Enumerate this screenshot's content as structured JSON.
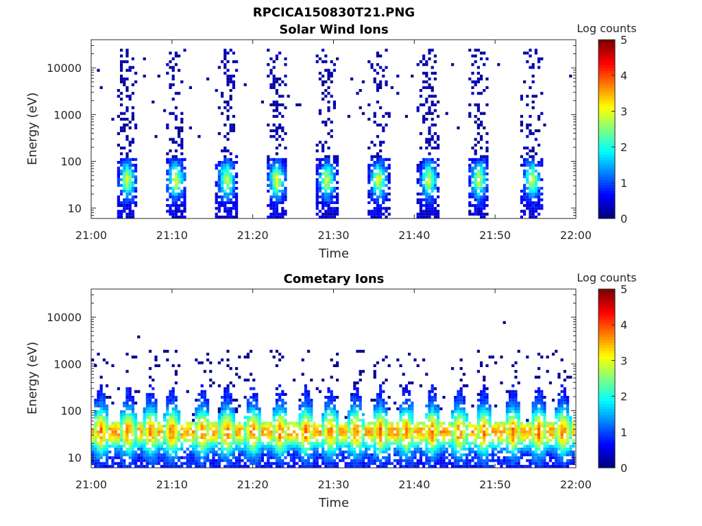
{
  "figure": {
    "title": "RPCICA150830T21.PNG"
  },
  "chart_data": [
    {
      "type": "heatmap",
      "title": "Solar Wind Ions",
      "xlabel": "Time",
      "ylabel": "Energy (eV)",
      "x_ticks": [
        "21:00",
        "21:10",
        "21:20",
        "21:30",
        "21:40",
        "21:50",
        "22:00"
      ],
      "xlim": [
        "21:00",
        "22:00"
      ],
      "y_scale": "log",
      "y_ticks": [
        "10",
        "100",
        "1000",
        "10000"
      ],
      "ylim": [
        6,
        40000
      ],
      "colorbar": {
        "label": "Log counts",
        "ticks": [
          "0",
          "1",
          "2",
          "3",
          "4",
          "5"
        ],
        "range": [
          0,
          5
        ],
        "colormap": "jet"
      },
      "pulses_minutes": [
        4.5,
        10.5,
        16.8,
        23.0,
        29.2,
        35.6,
        41.8,
        48.0,
        54.6
      ],
      "peak_energy_eV": 40,
      "peak_log_counts": 3.0,
      "background": "sparse counts up to ~20000 eV",
      "grid": false
    },
    {
      "type": "heatmap",
      "title": "Cometary Ions",
      "xlabel": "Time",
      "ylabel": "Energy (eV)",
      "x_ticks": [
        "21:00",
        "21:10",
        "21:20",
        "21:30",
        "21:40",
        "21:50",
        "22:00"
      ],
      "xlim": [
        "21:00",
        "22:00"
      ],
      "y_scale": "log",
      "y_ticks": [
        "10",
        "100",
        "1000",
        "10000"
      ],
      "ylim": [
        6,
        40000
      ],
      "colorbar": {
        "label": "Log counts",
        "ticks": [
          "0",
          "1",
          "2",
          "3",
          "4",
          "5"
        ],
        "range": [
          0,
          5
        ],
        "colormap": "jet"
      },
      "pulses_minutes": [
        1.2,
        4.6,
        7.4,
        10.0,
        13.8,
        16.8,
        20.0,
        23.4,
        26.6,
        29.6,
        32.8,
        35.8,
        39.0,
        42.2,
        45.6,
        48.6,
        52.2,
        55.4,
        58.4
      ],
      "peak_energy_eV": 35,
      "peak_log_counts": 4.0,
      "background": "sparse counts up to ~10000 eV",
      "grid": false
    }
  ]
}
